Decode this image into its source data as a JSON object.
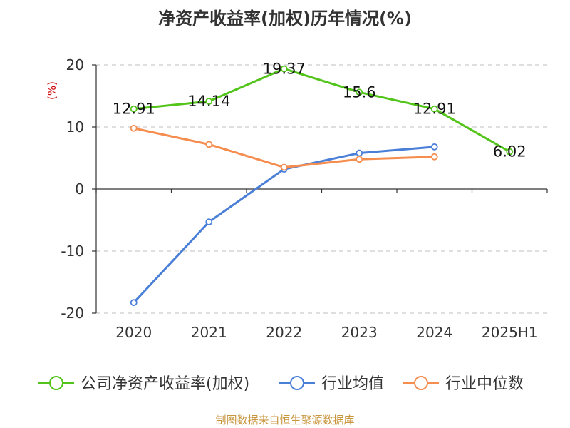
{
  "chart_data": {
    "type": "line",
    "title": "净资产收益率(加权)历年情况(%)",
    "ylabel": "(%)",
    "categories": [
      "2020",
      "2021",
      "2022",
      "2023",
      "2024",
      "2025H1"
    ],
    "ylim": [
      -20,
      20
    ],
    "yticks": [
      20,
      10,
      0,
      -10,
      -20
    ],
    "grid": true,
    "legend_position": "bottom",
    "series": [
      {
        "name": "公司净资产收益率(加权)",
        "color": "#52c41a",
        "values": [
          12.91,
          14.14,
          19.37,
          15.6,
          12.91,
          6.02
        ],
        "labels": [
          "12.91",
          "14.14",
          "19.37",
          "15.6",
          "12.91",
          "6.02"
        ]
      },
      {
        "name": "行业均值",
        "color": "#4a7fd8",
        "values": [
          -18.3,
          -5.3,
          3.2,
          5.8,
          6.8,
          null
        ]
      },
      {
        "name": "行业中位数",
        "color": "#f58d4f",
        "values": [
          9.8,
          7.2,
          3.5,
          4.8,
          5.2,
          null
        ]
      }
    ]
  },
  "source": "制图数据来自恒生聚源数据库"
}
